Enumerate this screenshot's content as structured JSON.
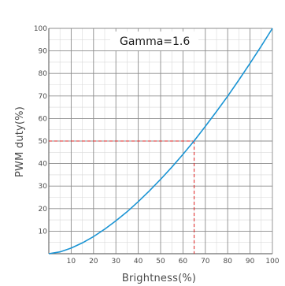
{
  "chart_data": {
    "type": "line",
    "xlabel": "Brightness(%)",
    "ylabel": "PWM duty(%)",
    "xlim": [
      0,
      100
    ],
    "ylim": [
      0,
      100
    ],
    "x_ticks": [
      10,
      20,
      30,
      40,
      50,
      60,
      70,
      80,
      90,
      100
    ],
    "y_ticks": [
      10,
      20,
      30,
      40,
      50,
      60,
      70,
      80,
      90,
      100
    ],
    "grid": true,
    "annotation": "Gamma=1.6",
    "series": [
      {
        "color": "#1a94d4",
        "x": [
          0,
          5,
          10,
          15,
          20,
          25,
          30,
          35,
          40,
          45,
          50,
          55,
          60,
          65,
          70,
          75,
          80,
          85,
          90,
          95,
          100
        ],
        "y": [
          0,
          0.8,
          2.5,
          4.8,
          7.6,
          10.9,
          14.6,
          18.6,
          23.1,
          27.9,
          33.0,
          38.4,
          44.1,
          50.1,
          56.5,
          63.1,
          69.9,
          77.1,
          84.5,
          92.1,
          100
        ]
      }
    ],
    "reference_point": {
      "x": 65,
      "y": 50,
      "color": "#e02020"
    }
  }
}
